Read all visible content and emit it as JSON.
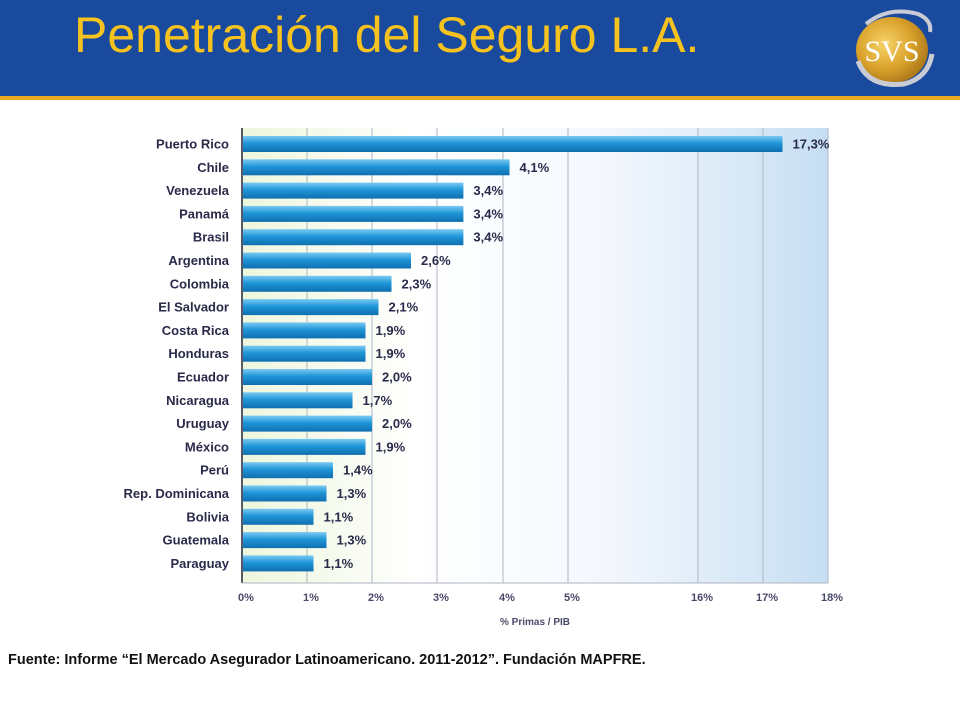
{
  "header": {
    "title": "Penetración del Seguro L.A.",
    "logo_text": "SVS",
    "bg_color": "#1a4a9e",
    "title_color": "#f6c21d",
    "accent_line_color": "#e8a91c"
  },
  "source": "Fuente: Informe “El Mercado Asegurador Latinoamericano. 2011-2012”. Fundación MAPFRE.",
  "chart_data": {
    "type": "bar",
    "orientation": "horizontal",
    "categories": [
      "Puerto Rico",
      "Chile",
      "Venezuela",
      "Panamá",
      "Brasil",
      "Argentina",
      "Colombia",
      "El Salvador",
      "Costa Rica",
      "Honduras",
      "Ecuador",
      "Nicaragua",
      "Uruguay",
      "México",
      "Perú",
      "Rep. Dominicana",
      "Bolivia",
      "Guatemala",
      "Paraguay"
    ],
    "values": [
      17.3,
      4.1,
      3.4,
      3.4,
      3.4,
      2.6,
      2.3,
      2.1,
      1.9,
      1.9,
      2.0,
      1.7,
      2.0,
      1.9,
      1.4,
      1.3,
      1.1,
      1.3,
      1.1
    ],
    "value_labels": [
      "17,3%",
      "4,1%",
      "3,4%",
      "3,4%",
      "3,4%",
      "2,6%",
      "2,3%",
      "2,1%",
      "1,9%",
      "1,9%",
      "2,0%",
      "1,7%",
      "2,0%",
      "1,9%",
      "1,4%",
      "1,3%",
      "1,1%",
      "1,3%",
      "1,1%"
    ],
    "x_ticks": [
      0,
      1,
      2,
      3,
      4,
      5,
      16,
      17,
      18
    ],
    "x_tick_labels": [
      "0%",
      "1%",
      "2%",
      "3%",
      "4%",
      "5%",
      "16%",
      "17%",
      "18%"
    ],
    "xlabel": "% Primas / PIB",
    "xlim": [
      0,
      18
    ],
    "axis_break": [
      5,
      16
    ],
    "grid": true,
    "bar_color": "#1f96d8"
  }
}
